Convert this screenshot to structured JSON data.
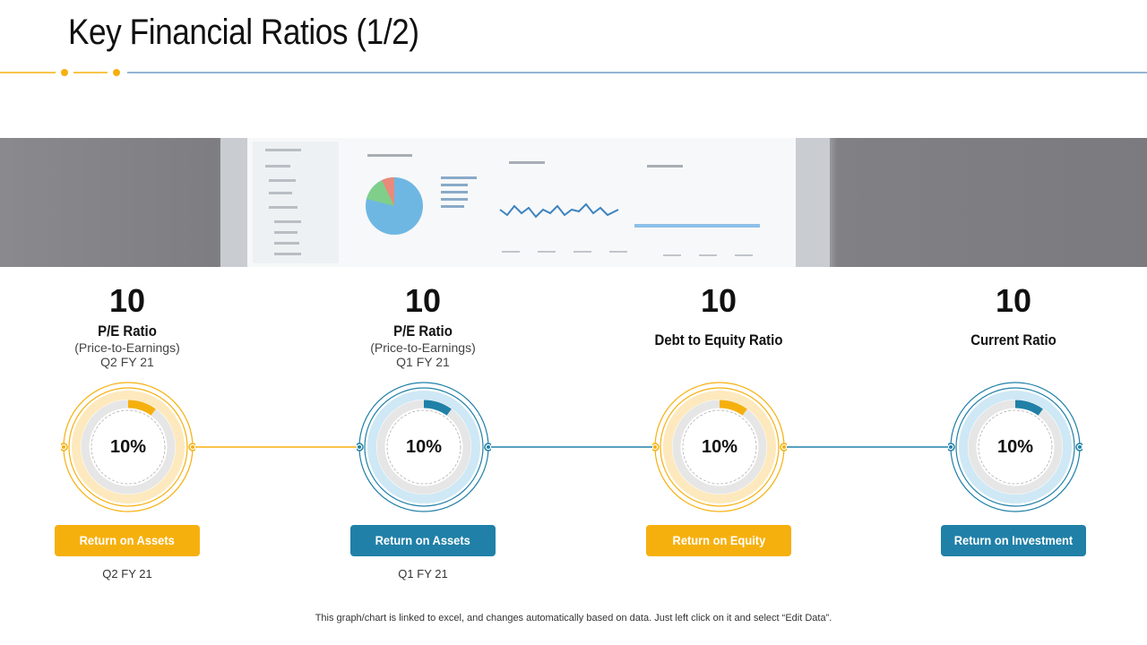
{
  "title": "Key Financial Ratios (1/2)",
  "colors": {
    "orange": "#f6b00e",
    "blue": "#2080a8",
    "light_orange": "#fde9bd",
    "light_blue": "#cfe8f5"
  },
  "metrics": [
    {
      "value": "10",
      "label": "P/E Ratio",
      "sub1": "(Price-to-Earnings)",
      "sub2": "Q2 FY 21"
    },
    {
      "value": "10",
      "label": "P/E Ratio",
      "sub1": "(Price-to-Earnings)",
      "sub2": "Q1 FY 21"
    },
    {
      "value": "10",
      "label": "Debt to Equity Ratio"
    },
    {
      "value": "10",
      "label": "Current Ratio"
    }
  ],
  "rings": [
    {
      "percent": "10%",
      "progress": 0.1,
      "theme": "orange"
    },
    {
      "percent": "10%",
      "progress": 0.1,
      "theme": "blue"
    },
    {
      "percent": "10%",
      "progress": 0.1,
      "theme": "orange"
    },
    {
      "percent": "10%",
      "progress": 0.1,
      "theme": "blue"
    }
  ],
  "buttons": [
    {
      "label": "Return on Assets",
      "theme": "orange",
      "period": "Q2 FY 21"
    },
    {
      "label": "Return on Assets",
      "theme": "blue",
      "period": "Q1 FY 21"
    },
    {
      "label": "Return on Equity",
      "theme": "orange"
    },
    {
      "label": "Return on Investment",
      "theme": "blue"
    }
  ],
  "footer": "This graph/chart is linked to excel,  and changes automatically based on data. Just left click on it and select “Edit Data”."
}
